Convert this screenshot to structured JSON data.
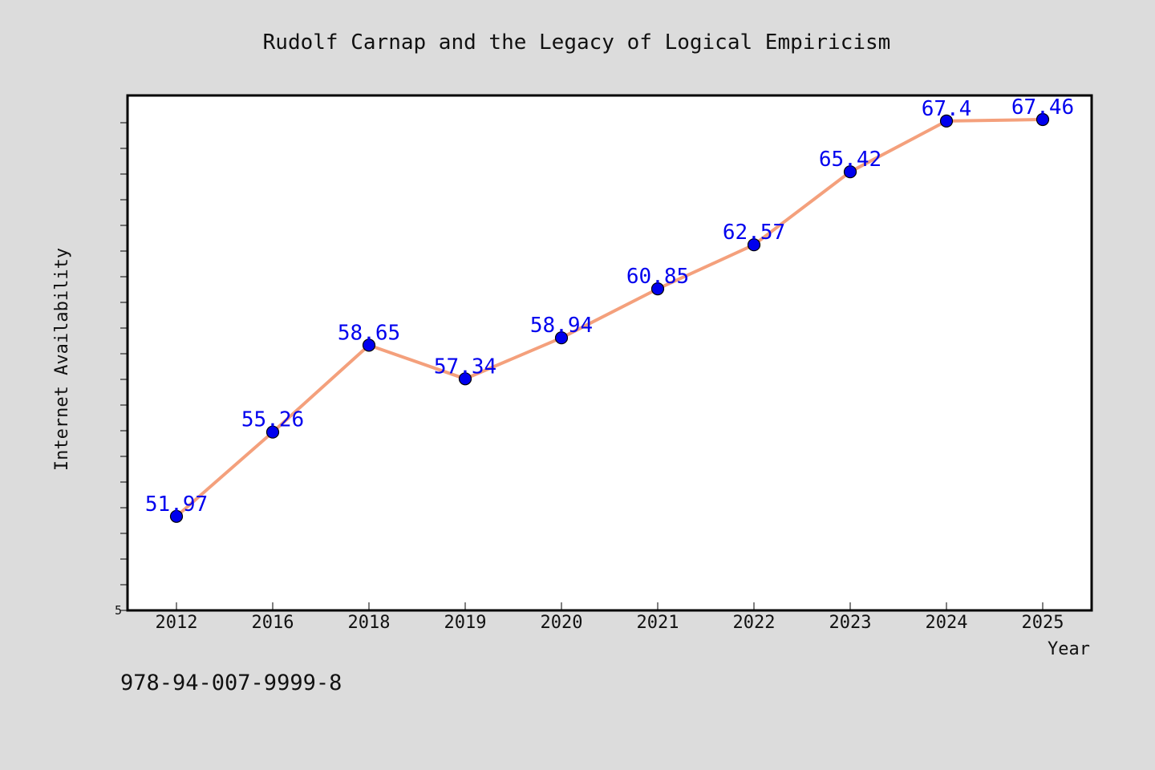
{
  "chart_data": {
    "type": "line",
    "title": "Rudolf Carnap and the Legacy of Logical Empiricism",
    "xlabel": "Year",
    "ylabel": "Internet Availability",
    "categories": [
      "2012",
      "2016",
      "2018",
      "2019",
      "2020",
      "2021",
      "2022",
      "2023",
      "2024",
      "2025"
    ],
    "series": [
      {
        "values": [
          51.97,
          55.26,
          58.65,
          57.34,
          58.94,
          60.85,
          62.57,
          65.42,
          67.4,
          67.46
        ]
      }
    ],
    "data_labels": [
      "51.97",
      "55.26",
      "58.65",
      "57.34",
      "58.94",
      "60.85",
      "62.57",
      "65.42",
      "67.4",
      "67.46"
    ],
    "y_tick_labels": [
      "5"
    ],
    "ylim": [
      48.3,
      68.4
    ],
    "grid": false,
    "legend": "none",
    "colors": {
      "line": "#f4a07c",
      "marker": "#0000ee",
      "data_label": "#0000ee",
      "plot_background": "#ffffff",
      "page_background": "#dcdcdc"
    }
  },
  "footer_text": "978-94-007-9999-8"
}
